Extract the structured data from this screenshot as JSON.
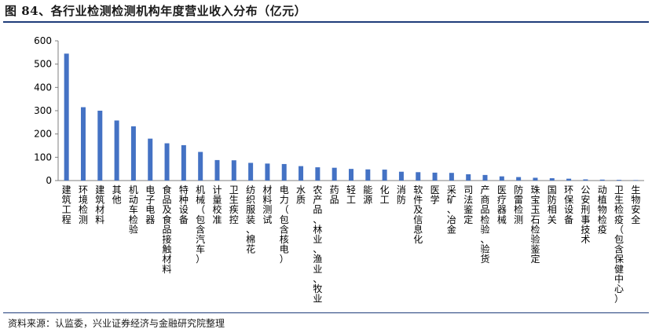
{
  "title": "图 84、各行业检测检测机构年度营业收入分布（亿元）",
  "source": "资料来源：认监委，兴业证券经济与金融研究院整理",
  "colors": {
    "bar": "#4472c4",
    "axis": "#7f7f7f",
    "rule": "#1f3d7a"
  },
  "chart_data": {
    "type": "bar",
    "title": "图 84、各行业检测检测机构年度营业收入分布（亿元）",
    "xlabel": "",
    "ylabel": "",
    "ylim": [
      0,
      600
    ],
    "yticks": [
      0,
      100,
      200,
      300,
      400,
      500,
      600
    ],
    "grid": false,
    "legend": "none",
    "categories": [
      "建筑工程",
      "环境检测",
      "建筑材料",
      "其他",
      "机动车检验",
      "电子电器",
      "食品及食品接触材料",
      "特种设备",
      "机械（包含汽车）",
      "计量校准",
      "卫生疾控",
      "纺织服装、棉花",
      "材料测试",
      "电力（包含核电）",
      "水质",
      "农产品、林业、渔业、牧业",
      "药品",
      "轻工",
      "能源",
      "化工",
      "消防",
      "软件及信息化",
      "医学",
      "采矿、冶金",
      "司法鉴定",
      "产商品检验、验货",
      "医疗器械",
      "防雷检测",
      "珠宝玉石检验鉴定",
      "国防相关",
      "环保设备",
      "公安刑事技术",
      "动植物检疫",
      "卫生检疫（包含保健中心）",
      "生物安全"
    ],
    "values": [
      545,
      315,
      300,
      258,
      233,
      180,
      160,
      152,
      123,
      88,
      87,
      76,
      73,
      71,
      62,
      57,
      55,
      50,
      48,
      47,
      38,
      36,
      34,
      33,
      27,
      24,
      18,
      15,
      12,
      10,
      8,
      5,
      4,
      3,
      2
    ]
  }
}
